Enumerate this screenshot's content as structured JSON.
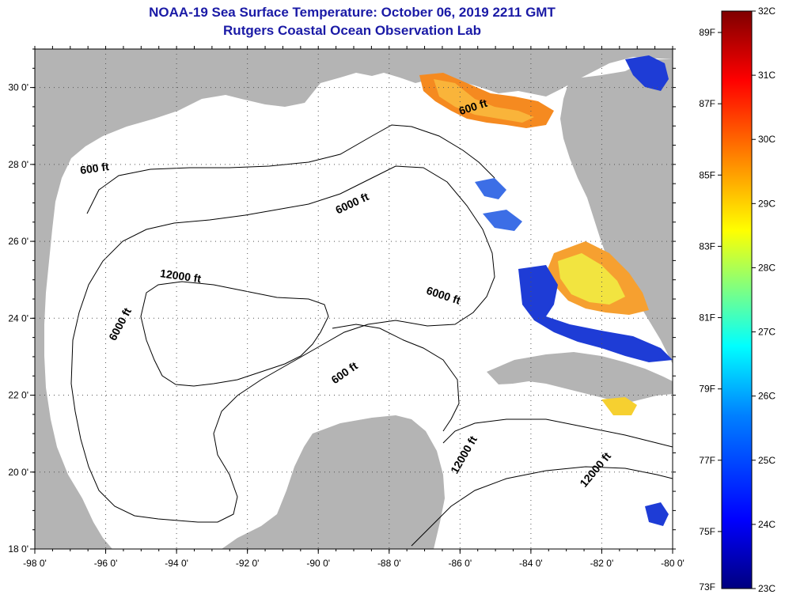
{
  "title": {
    "line1": "NOAA-19 Sea Surface Temperature:  October 06, 2019 2211 GMT",
    "line2": "Rutgers Coastal Ocean Observation Lab"
  },
  "axes": {
    "lon_ticks": [
      "-98 0'",
      "-96 0'",
      "-94 0'",
      "-92 0'",
      "-90 0'",
      "-88 0'",
      "-86 0'",
      "-84 0'",
      "-82 0'",
      "-80 0'"
    ],
    "lat_ticks": [
      "30 0'",
      "28 0'",
      "26 0'",
      "24 0'",
      "22 0'",
      "20 0'",
      "18 0'"
    ],
    "lon_range": [
      -98,
      -80
    ],
    "lat_range": [
      18,
      31
    ]
  },
  "contour_labels": [
    {
      "text": "600 ft",
      "lon": -85.6,
      "lat": 29.4,
      "rot": -18
    },
    {
      "text": "600 ft",
      "lon": -96.3,
      "lat": 27.8,
      "rot": -8
    },
    {
      "text": "6000 ft",
      "lon": -89.0,
      "lat": 26.9,
      "rot": -25
    },
    {
      "text": "12000 ft",
      "lon": -93.9,
      "lat": 25.0,
      "rot": 8
    },
    {
      "text": "6000 ft",
      "lon": -86.5,
      "lat": 24.5,
      "rot": 18
    },
    {
      "text": "6000 ft",
      "lon": -95.5,
      "lat": 23.8,
      "rot": -62
    },
    {
      "text": "600 ft",
      "lon": -89.2,
      "lat": 22.5,
      "rot": -35
    },
    {
      "text": "12000 ft",
      "lon": -85.8,
      "lat": 20.4,
      "rot": -60
    },
    {
      "text": "12000 ft",
      "lon": -82.1,
      "lat": 20.0,
      "rot": -50
    }
  ],
  "colorbar": {
    "celsius_labels": [
      "32C",
      "31C",
      "30C",
      "29C",
      "28C",
      "27C",
      "26C",
      "25C",
      "24C",
      "23C"
    ],
    "fahrenheit_labels": [
      "89F",
      "87F",
      "85F",
      "83F",
      "81F",
      "79F",
      "77F",
      "75F",
      "73F"
    ],
    "c_range": [
      23,
      32
    ],
    "colors": [
      "#00007f",
      "#0000ff",
      "#0080ff",
      "#00ffff",
      "#80ff80",
      "#ffff00",
      "#ff8000",
      "#ff0000",
      "#7f0000"
    ]
  },
  "colors": {
    "land": "#b4b4b4",
    "ocean": "#ffffff",
    "title": "#1a1aa6"
  }
}
